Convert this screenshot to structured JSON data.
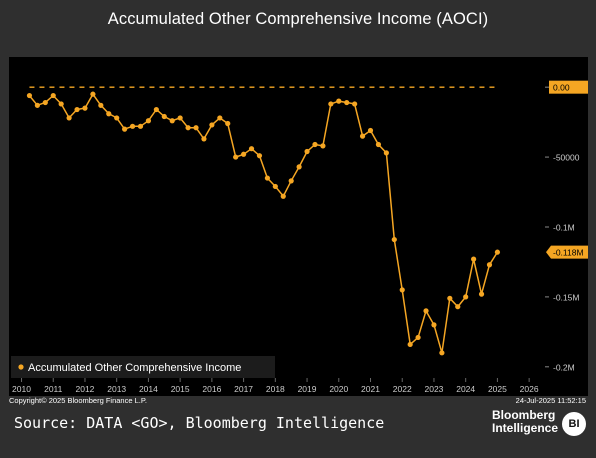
{
  "title": "Accumulated Other Comprehensive Income (AOCI)",
  "copyright": "Copyright© 2025 Bloomberg Finance L.P.",
  "timestamp": "24-Jul-2025 11:52:15",
  "source": "Source: DATA <GO>, Bloomberg Intelligence",
  "brand": {
    "line1": "Bloomberg",
    "line2": "Intelligence",
    "badge": "BI"
  },
  "colors": {
    "series": "#f5a623",
    "background": "#000000",
    "frame": "#2f2f2f",
    "text": "#ffffff",
    "axis_text": "#cccccc"
  },
  "chart_data": {
    "type": "line",
    "legend": {
      "label": "Accumulated Other Comprehensive Income",
      "position": "bottom-left"
    },
    "x_ticks": [
      "2010",
      "2011",
      "2012",
      "2013",
      "2014",
      "2015",
      "2016",
      "2017",
      "2018",
      "2019",
      "2020",
      "2021",
      "2022",
      "2023",
      "2024",
      "2025",
      "2026"
    ],
    "y_ticks": [
      {
        "value": 0,
        "label": "0.00",
        "highlight": true
      },
      {
        "value": -50000,
        "label": "-50000"
      },
      {
        "value": -100000,
        "label": "-0.1M"
      },
      {
        "value": -150000,
        "label": "-0.15M"
      },
      {
        "value": -200000,
        "label": "-0.2M"
      }
    ],
    "last_value_label": {
      "value": -118000,
      "label": "-0.118M"
    },
    "reference_line": {
      "value": 0,
      "style": "dashed"
    },
    "ylim": [
      -208000,
      18000
    ],
    "xlim": [
      2009.7,
      2026.5
    ],
    "grid": false,
    "series": [
      {
        "name": "Accumulated Other Comprehensive Income",
        "points": [
          [
            2010.25,
            -6000
          ],
          [
            2010.5,
            -13000
          ],
          [
            2010.75,
            -11000
          ],
          [
            2011.0,
            -6000
          ],
          [
            2011.25,
            -12000
          ],
          [
            2011.5,
            -22000
          ],
          [
            2011.75,
            -16000
          ],
          [
            2012.0,
            -15000
          ],
          [
            2012.25,
            -5000
          ],
          [
            2012.5,
            -13000
          ],
          [
            2012.75,
            -19000
          ],
          [
            2013.0,
            -22000
          ],
          [
            2013.25,
            -30000
          ],
          [
            2013.5,
            -28000
          ],
          [
            2013.75,
            -28000
          ],
          [
            2014.0,
            -24000
          ],
          [
            2014.25,
            -16000
          ],
          [
            2014.5,
            -21000
          ],
          [
            2014.75,
            -24000
          ],
          [
            2015.0,
            -22000
          ],
          [
            2015.25,
            -29000
          ],
          [
            2015.5,
            -29000
          ],
          [
            2015.75,
            -37000
          ],
          [
            2016.0,
            -27000
          ],
          [
            2016.25,
            -22000
          ],
          [
            2016.5,
            -26000
          ],
          [
            2016.75,
            -50000
          ],
          [
            2017.0,
            -48000
          ],
          [
            2017.25,
            -44000
          ],
          [
            2017.5,
            -49000
          ],
          [
            2017.75,
            -65000
          ],
          [
            2018.0,
            -71000
          ],
          [
            2018.25,
            -78000
          ],
          [
            2018.5,
            -67000
          ],
          [
            2018.75,
            -57000
          ],
          [
            2019.0,
            -46000
          ],
          [
            2019.25,
            -41000
          ],
          [
            2019.5,
            -42000
          ],
          [
            2019.75,
            -12000
          ],
          [
            2020.0,
            -10000
          ],
          [
            2020.25,
            -11000
          ],
          [
            2020.5,
            -12000
          ],
          [
            2020.75,
            -35000
          ],
          [
            2021.0,
            -31000
          ],
          [
            2021.25,
            -41000
          ],
          [
            2021.5,
            -47000
          ],
          [
            2021.75,
            -109000
          ],
          [
            2022.0,
            -145000
          ],
          [
            2022.25,
            -184000
          ],
          [
            2022.5,
            -179000
          ],
          [
            2022.75,
            -160000
          ],
          [
            2023.0,
            -170000
          ],
          [
            2023.25,
            -190000
          ],
          [
            2023.5,
            -151000
          ],
          [
            2023.75,
            -157000
          ],
          [
            2024.0,
            -150000
          ],
          [
            2024.25,
            -123000
          ],
          [
            2024.5,
            -148000
          ],
          [
            2024.75,
            -127000
          ],
          [
            2025.0,
            -118000
          ]
        ]
      }
    ]
  }
}
